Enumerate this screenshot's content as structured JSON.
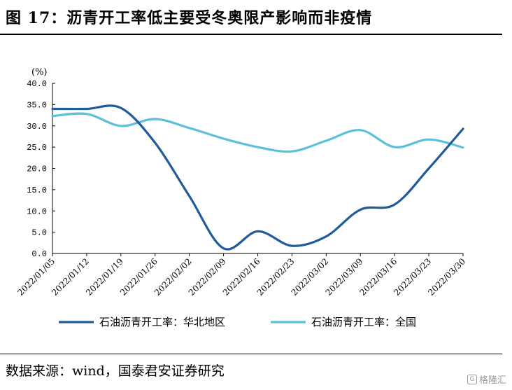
{
  "title": "图 17：沥青开工率低主要受冬奥限产影响而非疫情",
  "source": "数据来源：wind，国泰君安证券研究",
  "watermark": "格隆汇",
  "colors": {
    "north": "#1f5c99",
    "national": "#5bc0d8"
  },
  "chart_data": {
    "type": "line",
    "unit_label": "(%)",
    "ylim": [
      0,
      40
    ],
    "yticks": [
      "40.0",
      "35.0",
      "30.0",
      "25.0",
      "20.0",
      "15.0",
      "10.0",
      "5.0",
      "0.0"
    ],
    "categories": [
      "2022/01/05",
      "2022/01/12",
      "2022/01/19",
      "2022/01/26",
      "2022/02/02",
      "2022/02/09",
      "2022/02/16",
      "2022/02/23",
      "2022/03/02",
      "2022/03/09",
      "2022/03/16",
      "2022/03/23",
      "2022/03/30"
    ],
    "series": [
      {
        "name": "石油沥青开工率：华北地区",
        "color": "#1f5c99",
        "values": [
          34.0,
          34.0,
          34.2,
          26.0,
          13.5,
          1.2,
          5.2,
          1.8,
          4.0,
          10.3,
          11.5,
          20.0,
          29.3
        ]
      },
      {
        "name": "石油沥青开工率：全国",
        "color": "#5bc0d8",
        "values": [
          32.3,
          32.8,
          30.0,
          31.6,
          29.5,
          27.0,
          25.0,
          24.0,
          26.5,
          29.0,
          25.0,
          26.8,
          24.9
        ]
      }
    ],
    "grid": false,
    "legend_position": "bottom"
  }
}
